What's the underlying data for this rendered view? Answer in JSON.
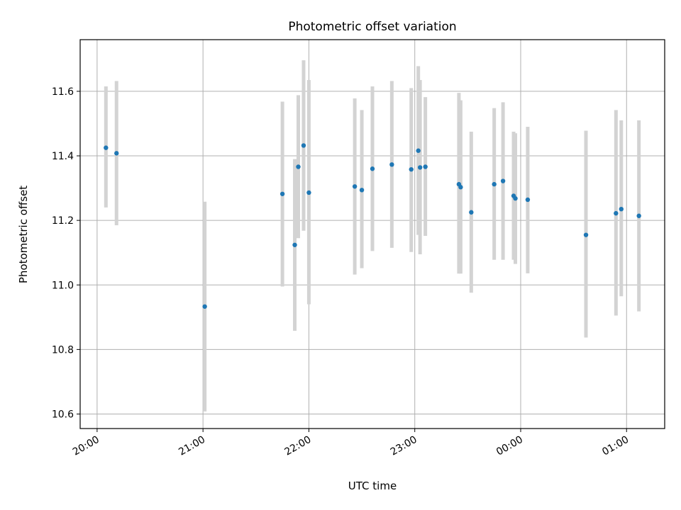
{
  "chart_data": {
    "type": "scatter",
    "title": "Photometric offset variation",
    "xlabel": "UTC time",
    "ylabel": "Photometric offset",
    "x_ticks": [
      "20:00",
      "21:00",
      "22:00",
      "23:00",
      "00:00",
      "01:00"
    ],
    "x_tick_hours": [
      0,
      1,
      2,
      3,
      4,
      5
    ],
    "x_reference_time": "20:00",
    "xlim_hours": [
      -0.16,
      5.36
    ],
    "y_ticks": [
      "10.6",
      "10.8",
      "11.0",
      "11.2",
      "11.4",
      "11.6"
    ],
    "ylim": [
      10.555,
      11.76
    ],
    "grid": true,
    "colors": {
      "points": "#1f77b4",
      "errorbars": "#d3d3d3"
    },
    "points": [
      {
        "time": "20:05",
        "y": 11.425,
        "lo": 11.24,
        "hi": 11.615
      },
      {
        "time": "20:11",
        "y": 11.408,
        "lo": 11.185,
        "hi": 11.632
      },
      {
        "time": "21:01",
        "y": 10.933,
        "lo": 10.608,
        "hi": 11.258
      },
      {
        "time": "21:45",
        "y": 11.282,
        "lo": 10.995,
        "hi": 11.568
      },
      {
        "time": "21:52",
        "y": 11.124,
        "lo": 10.858,
        "hi": 11.39
      },
      {
        "time": "21:54",
        "y": 11.366,
        "lo": 11.145,
        "hi": 11.588
      },
      {
        "time": "21:57",
        "y": 11.432,
        "lo": 11.168,
        "hi": 11.696
      },
      {
        "time": "22:00",
        "y": 11.286,
        "lo": 10.94,
        "hi": 11.635
      },
      {
        "time": "22:26",
        "y": 11.305,
        "lo": 11.032,
        "hi": 11.578
      },
      {
        "time": "22:30",
        "y": 11.294,
        "lo": 11.052,
        "hi": 11.542
      },
      {
        "time": "22:36",
        "y": 11.36,
        "lo": 11.105,
        "hi": 11.615
      },
      {
        "time": "22:47",
        "y": 11.373,
        "lo": 11.115,
        "hi": 11.632
      },
      {
        "time": "22:58",
        "y": 11.358,
        "lo": 11.102,
        "hi": 11.61
      },
      {
        "time": "23:02",
        "y": 11.416,
        "lo": 11.155,
        "hi": 11.678
      },
      {
        "time": "23:03",
        "y": 11.364,
        "lo": 11.095,
        "hi": 11.635
      },
      {
        "time": "23:06",
        "y": 11.366,
        "lo": 11.152,
        "hi": 11.582
      },
      {
        "time": "23:25",
        "y": 11.312,
        "lo": 11.035,
        "hi": 11.595
      },
      {
        "time": "23:26",
        "y": 11.303,
        "lo": 11.035,
        "hi": 11.572
      },
      {
        "time": "23:32",
        "y": 11.225,
        "lo": 10.976,
        "hi": 11.475
      },
      {
        "time": "23:45",
        "y": 11.312,
        "lo": 11.078,
        "hi": 11.548
      },
      {
        "time": "23:50",
        "y": 11.322,
        "lo": 11.078,
        "hi": 11.566
      },
      {
        "time": "23:56",
        "y": 11.276,
        "lo": 11.078,
        "hi": 11.475
      },
      {
        "time": "23:57",
        "y": 11.268,
        "lo": 11.065,
        "hi": 11.47
      },
      {
        "time": "00:04",
        "y": 11.264,
        "lo": 11.036,
        "hi": 11.49
      },
      {
        "time": "00:37",
        "y": 11.155,
        "lo": 10.837,
        "hi": 11.478
      },
      {
        "time": "00:54",
        "y": 11.222,
        "lo": 10.905,
        "hi": 11.542
      },
      {
        "time": "00:57",
        "y": 11.235,
        "lo": 10.965,
        "hi": 11.51
      },
      {
        "time": "01:07",
        "y": 11.214,
        "lo": 10.918,
        "hi": 11.51
      }
    ]
  }
}
